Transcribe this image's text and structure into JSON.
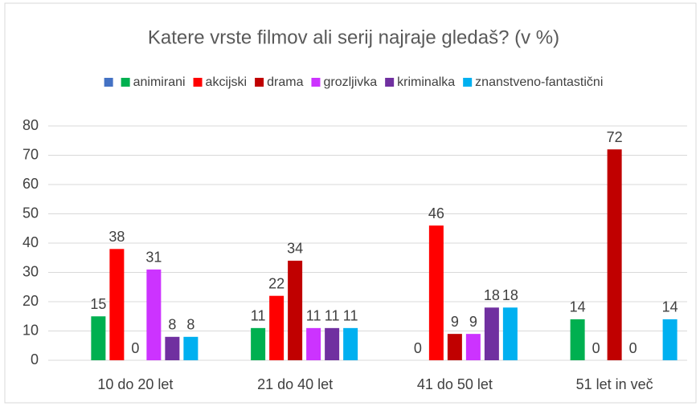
{
  "chart_data": {
    "type": "bar",
    "title": "Katere vrste filmov ali serij najraje gledaš? (v %)",
    "categories": [
      "10 do 20 let",
      "21 do 40 let",
      "41 do 50 let",
      "51 let in več"
    ],
    "series": [
      {
        "name": null,
        "color": "#4472c4",
        "values": [
          null,
          null,
          null,
          null
        ]
      },
      {
        "name": "animirani",
        "color": "#00b050",
        "values": [
          15,
          11,
          0,
          14
        ]
      },
      {
        "name": "akcijski",
        "color": "#ff0000",
        "values": [
          38,
          22,
          46,
          0
        ]
      },
      {
        "name": "drama",
        "color": "#c00000",
        "values": [
          0,
          34,
          9,
          72
        ]
      },
      {
        "name": "grozljivka",
        "color": "#cc33ff",
        "values": [
          31,
          11,
          9,
          0
        ]
      },
      {
        "name": "kriminalka",
        "color": "#7030a0",
        "values": [
          8,
          11,
          18,
          null
        ]
      },
      {
        "name": "znanstveno-fantastični",
        "color": "#00b0f0",
        "values": [
          8,
          11,
          18,
          14
        ]
      }
    ],
    "ylim": [
      0,
      80
    ],
    "yticks": [
      0,
      10,
      20,
      30,
      40,
      50,
      60,
      70,
      80
    ],
    "grid": true,
    "legend": "top"
  }
}
